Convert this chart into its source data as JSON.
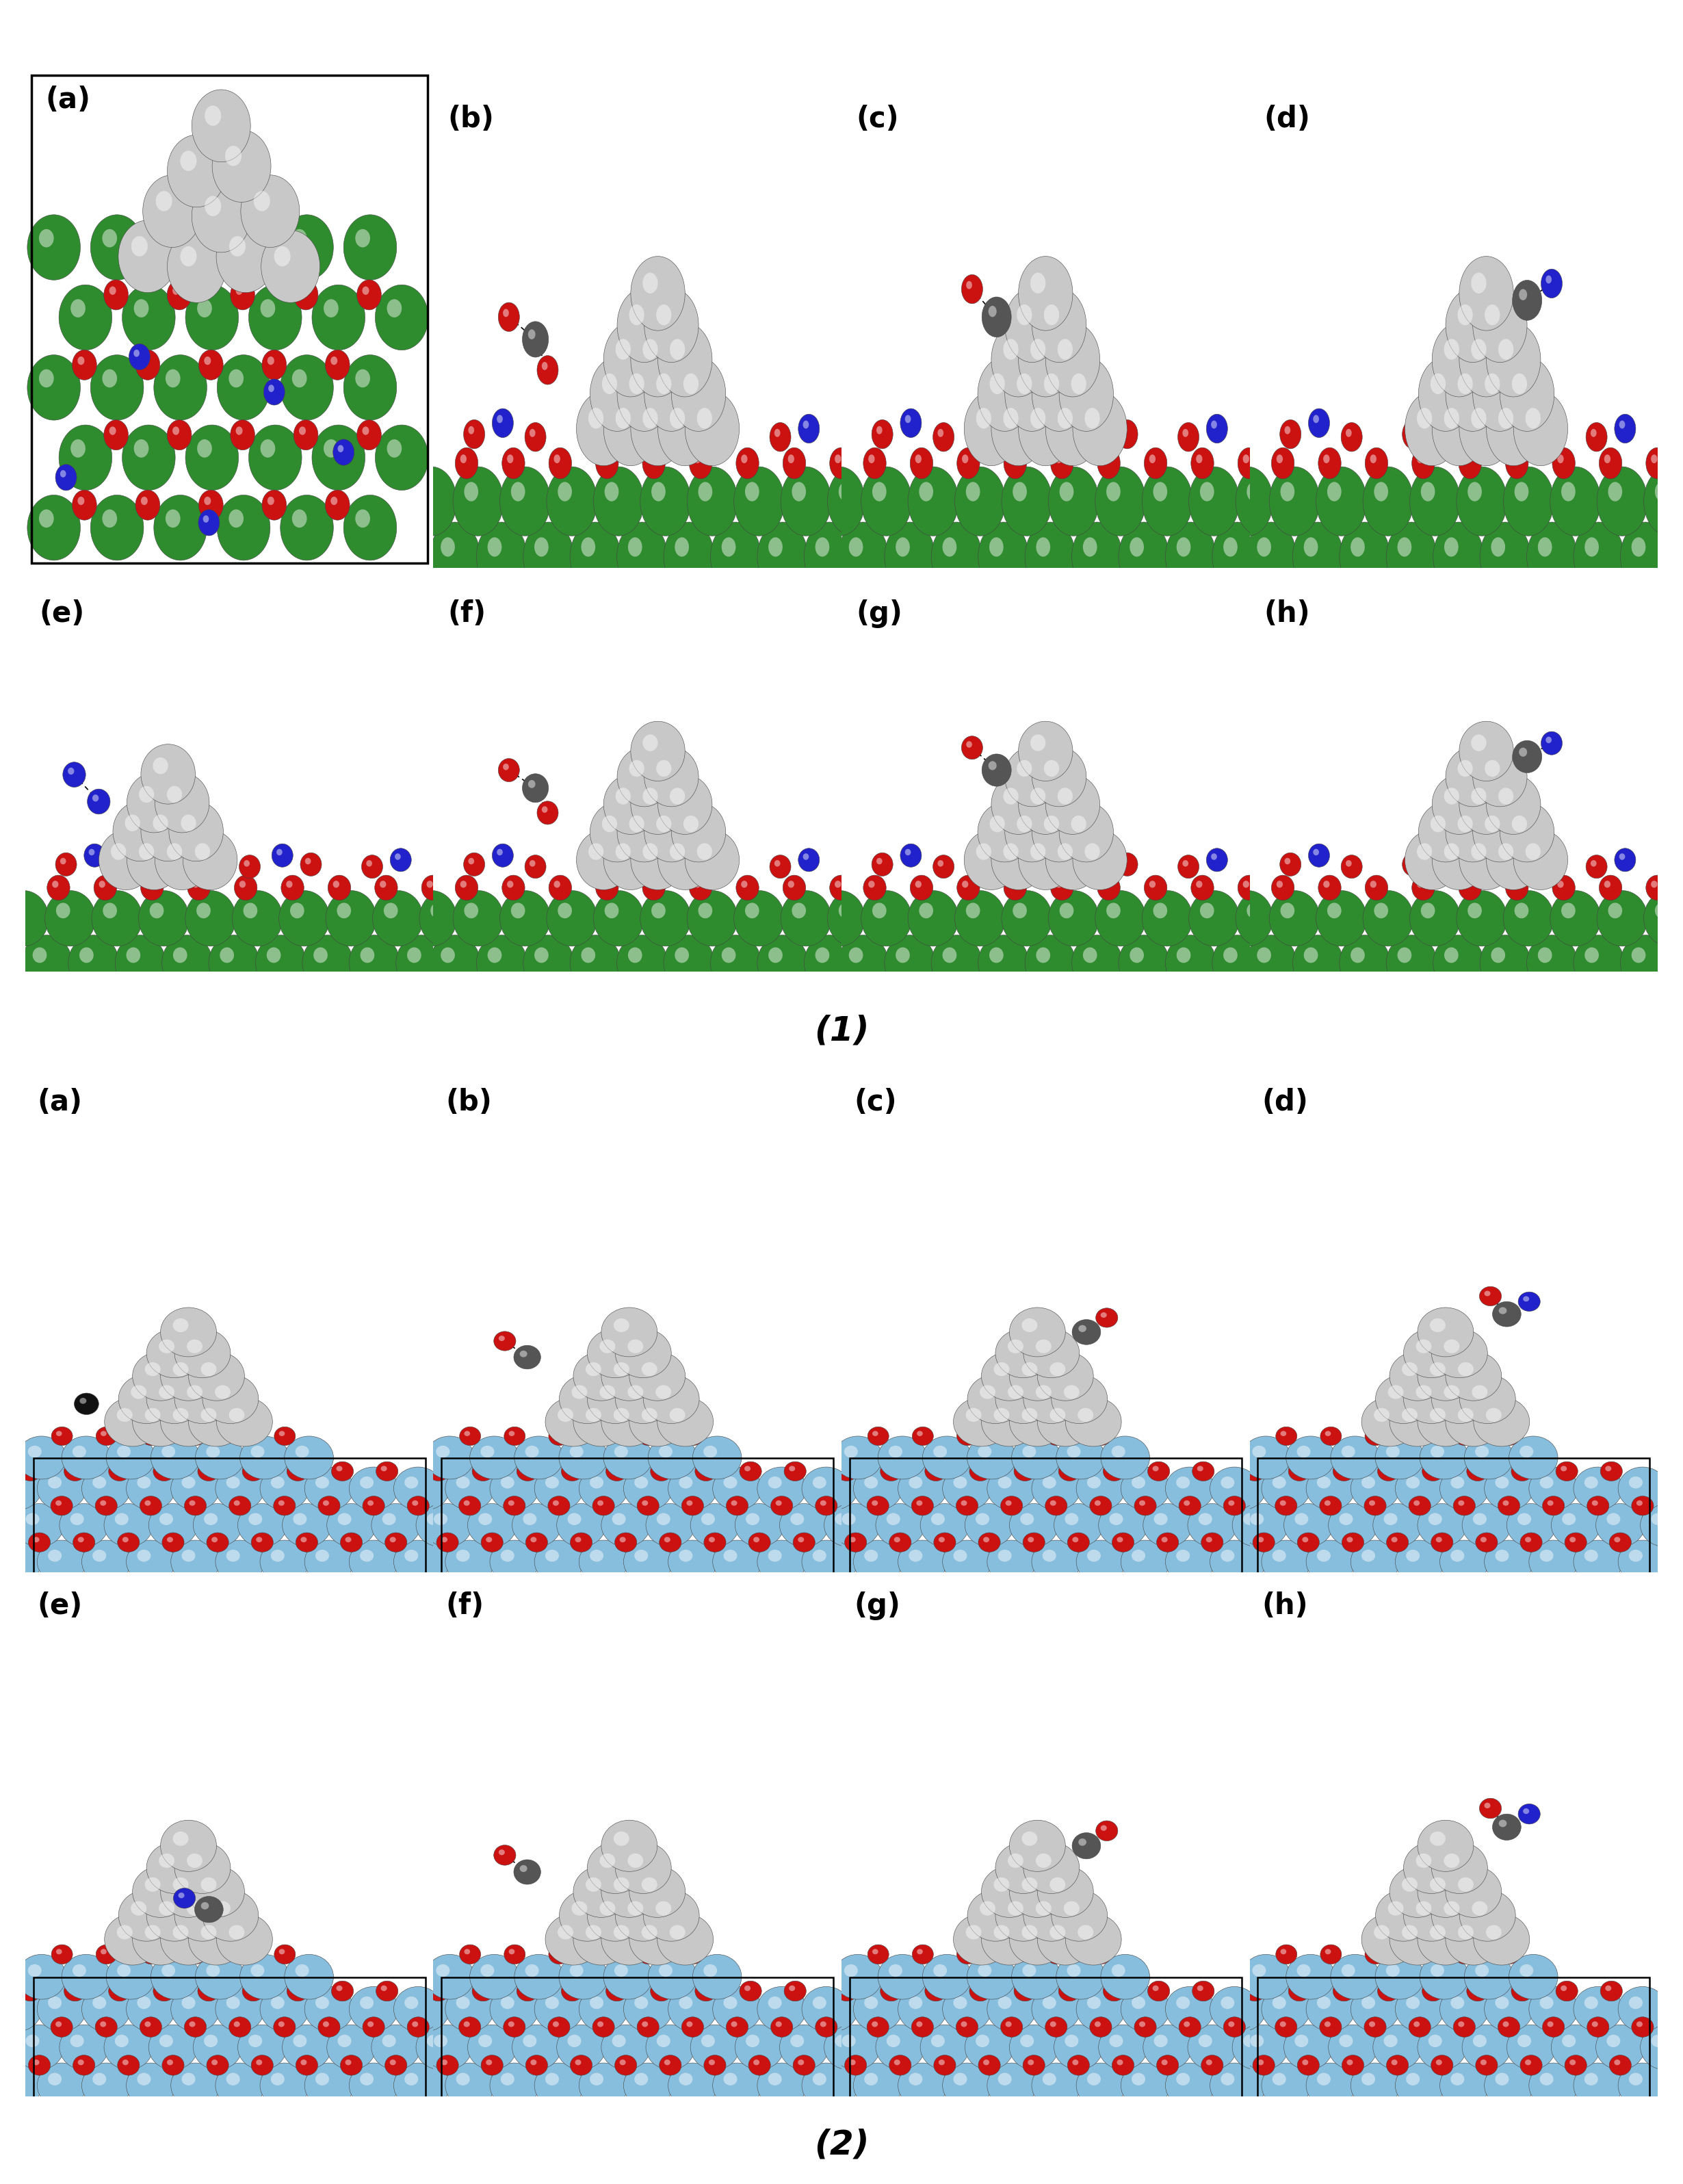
{
  "title1": "(1)",
  "title2": "(2)",
  "bg_color": "#ffffff",
  "label_fontsize": 30,
  "title_fontsize": 36,
  "label_fontweight": "bold",
  "colors": {
    "silver": "#C8C8C8",
    "silver_light": "#DCDCDC",
    "silver_dark": "#A0A0A0",
    "green": "#2E8B2E",
    "green_dark": "#1a6b1a",
    "red": "#CC1111",
    "blue": "#2222CC",
    "dark_gray": "#555555",
    "light_blue": "#87BEDE",
    "light_blue2": "#9ACBE8",
    "black": "#111111",
    "white": "#ffffff"
  },
  "section1_rows": [
    [
      "(a)",
      "(b)",
      "(c)",
      "(d)"
    ],
    [
      "(e)",
      "(f)",
      "(g)",
      "(h)"
    ]
  ],
  "section2_rows": [
    [
      "(a)",
      "(b)",
      "(c)",
      "(d)"
    ],
    [
      "(e)",
      "(f)",
      "(g)",
      "(h)"
    ]
  ]
}
